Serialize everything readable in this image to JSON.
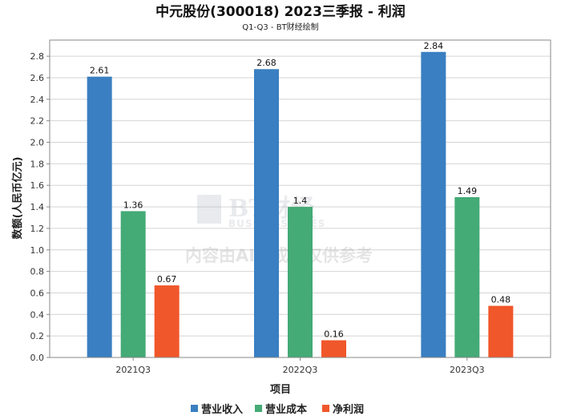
{
  "chart_data": {
    "type": "bar",
    "title": "中元股份(300018) 2023三季报 - 利润",
    "subtitle": "Q1-Q3 - BT财经绘制",
    "xlabel": "项目",
    "ylabel": "数额(人民币亿元)",
    "categories": [
      "2021Q3",
      "2022Q3",
      "2023Q3"
    ],
    "series": [
      {
        "name": "营业收入",
        "color": "#3a7fc1",
        "values": [
          2.61,
          2.68,
          2.84
        ],
        "labels": [
          "2.61",
          "2.68",
          "2.84"
        ]
      },
      {
        "name": "营业成本",
        "color": "#44aa76",
        "values": [
          1.36,
          1.4,
          1.49
        ],
        "labels": [
          "1.36",
          "1.4",
          "1.49"
        ]
      },
      {
        "name": "净利润",
        "color": "#f0572a",
        "values": [
          0.67,
          0.16,
          0.48
        ],
        "labels": [
          "0.67",
          "0.16",
          "0.48"
        ]
      }
    ],
    "ylim": [
      0,
      2.95
    ],
    "yticks": [
      "0.0",
      "0.2",
      "0.4",
      "0.6",
      "0.8",
      "1.0",
      "1.2",
      "1.4",
      "1.6",
      "1.8",
      "2.0",
      "2.2",
      "2.4",
      "2.6",
      "2.8"
    ],
    "grid": true,
    "legend_position": "bottom-center"
  },
  "watermark": {
    "brand": "BT财经",
    "brand_en": "BUSINESSTIMES",
    "notice": "内容由AI生成，仅供参考"
  }
}
